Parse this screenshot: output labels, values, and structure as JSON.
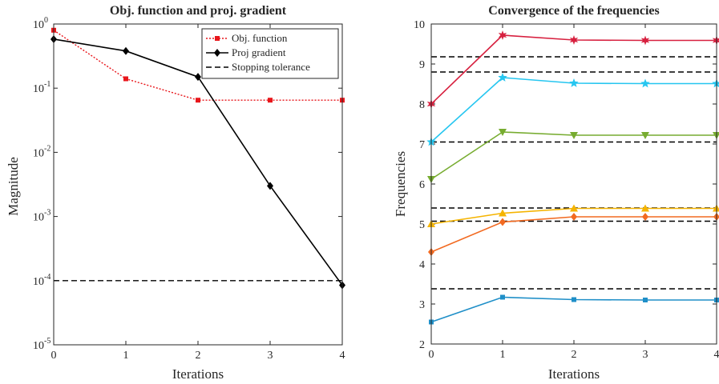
{
  "chart_data": [
    {
      "type": "line",
      "title": "Obj. function and proj. gradient",
      "xlabel": "Iterations",
      "ylabel": "Magnitude",
      "yscale": "log",
      "xlim": [
        0,
        4
      ],
      "ylim": [
        1e-05,
        1
      ],
      "x_ticks": [
        "0",
        "1",
        "2",
        "3",
        "4"
      ],
      "y_ticks": [
        {
          "base": "10",
          "exp": "0",
          "value": 1
        },
        {
          "base": "10",
          "exp": "-1",
          "value": 0.1
        },
        {
          "base": "10",
          "exp": "-2",
          "value": 0.01
        },
        {
          "base": "10",
          "exp": "-3",
          "value": 0.001
        },
        {
          "base": "10",
          "exp": "-4",
          "value": 0.0001
        },
        {
          "base": "10",
          "exp": "-5",
          "value": 1e-05
        }
      ],
      "legend_position": "top-right",
      "series": [
        {
          "name": "Obj. function",
          "x": [
            0,
            1,
            2,
            3,
            4
          ],
          "values": [
            0.8,
            0.14,
            0.065,
            0.065,
            0.065
          ],
          "color": "#e8161b",
          "style": "dotted",
          "marker": "square"
        },
        {
          "name": "Proj gradient",
          "x": [
            0,
            1,
            2,
            3,
            4
          ],
          "values": [
            0.58,
            0.38,
            0.15,
            0.003,
            8.5e-05
          ],
          "color": "#000000",
          "style": "solid",
          "marker": "diamond"
        },
        {
          "name": "Stopping tolerance",
          "x": [
            0,
            4
          ],
          "values": [
            0.0001,
            0.0001
          ],
          "color": "#000000",
          "style": "dashed",
          "marker": "none"
        }
      ]
    },
    {
      "type": "line",
      "title": "Convergence of the frequencies",
      "xlabel": "Iterations",
      "ylabel": "Frequencies",
      "xlim": [
        0,
        4
      ],
      "ylim": [
        2,
        10
      ],
      "x_ticks": [
        "0",
        "1",
        "2",
        "3",
        "4"
      ],
      "y_ticks": [
        "2",
        "3",
        "4",
        "5",
        "6",
        "7",
        "8",
        "9",
        "10"
      ],
      "series": [
        {
          "x": [
            0,
            1,
            2,
            3,
            4
          ],
          "values": [
            8.0,
            9.72,
            9.6,
            9.59,
            9.59
          ],
          "color": "#d7203f",
          "marker": "star6"
        },
        {
          "x": [
            0,
            1,
            2,
            3,
            4
          ],
          "values": [
            7.05,
            8.66,
            8.52,
            8.51,
            8.51
          ],
          "color": "#26c6f0",
          "marker": "star5"
        },
        {
          "x": [
            0,
            1,
            2,
            3,
            4
          ],
          "values": [
            6.12,
            7.3,
            7.22,
            7.22,
            7.22
          ],
          "color": "#77ac30",
          "marker": "triangle-down"
        },
        {
          "x": [
            0,
            1,
            2,
            3,
            4
          ],
          "values": [
            5.0,
            5.27,
            5.39,
            5.39,
            5.39
          ],
          "color": "#f5b400",
          "marker": "triangle-up"
        },
        {
          "x": [
            0,
            1,
            2,
            3,
            4
          ],
          "values": [
            4.3,
            5.05,
            5.18,
            5.18,
            5.18
          ],
          "color": "#f26a21",
          "marker": "diamond"
        },
        {
          "x": [
            0,
            1,
            2,
            3,
            4
          ],
          "values": [
            2.55,
            3.17,
            3.11,
            3.1,
            3.1
          ],
          "color": "#1f8fc8",
          "marker": "square"
        }
      ],
      "reference_lines": {
        "style": "dashed",
        "color": "#000000",
        "values": [
          9.18,
          8.8,
          7.05,
          5.4,
          5.07,
          3.38
        ]
      }
    }
  ]
}
